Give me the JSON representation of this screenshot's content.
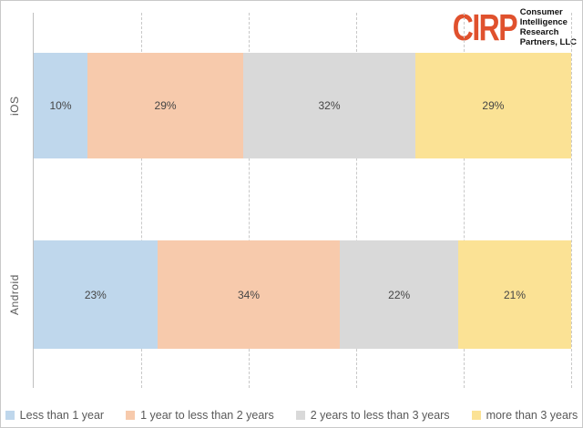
{
  "logo": {
    "brand": "CIRP",
    "brand_color": "#E0512D",
    "lines": [
      "Consumer",
      "Intelligence",
      "Research",
      "Partners, LLC"
    ]
  },
  "chart_data": {
    "type": "bar",
    "subtype": "horizontal-stacked",
    "title": "",
    "categories": [
      "iOS",
      "Android"
    ],
    "series": [
      {
        "name": "Less than 1 year",
        "color": "#BFD7EC",
        "values": [
          10,
          23
        ]
      },
      {
        "name": "1 year to less than 2 years",
        "color": "#F7CAAC",
        "values": [
          29,
          34
        ]
      },
      {
        "name": "2 years to less than 3 years",
        "color": "#D9D9D9",
        "values": [
          32,
          22
        ]
      },
      {
        "name": "more than 3 years",
        "color": "#FBE295",
        "values": [
          29,
          21
        ]
      }
    ],
    "value_suffix": "%",
    "xlim": [
      0,
      100
    ],
    "gridlines_percent": [
      20,
      40,
      60,
      80,
      100
    ],
    "grid_style": "dashed",
    "legend_position": "bottom",
    "axis_line_color": "#bfbfbf"
  }
}
